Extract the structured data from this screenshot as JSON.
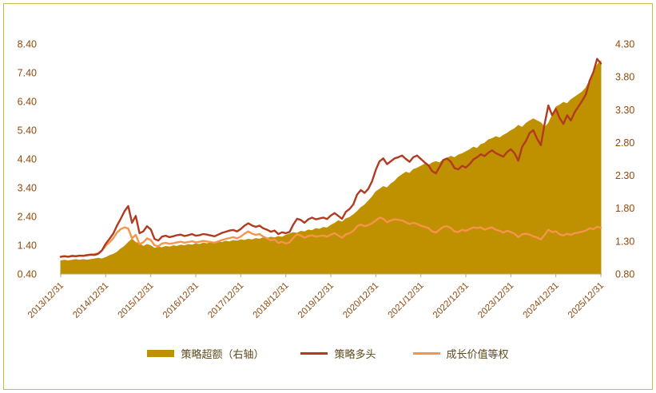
{
  "page": {
    "background": "#FFFFFF",
    "frame_color": "#C9B84D"
  },
  "chart_data": {
    "type": "combo (area + line)",
    "title": "",
    "legend_position": "bottom",
    "grid": false,
    "x_tick_labels": [
      "2013/12/31",
      "2014/12/31",
      "2015/12/31",
      "2016/12/31",
      "2017/12/31",
      "2018/12/31",
      "2019/12/31",
      "2020/12/31",
      "2021/12/31",
      "2022/12/31",
      "2023/12/31",
      "2024/12/31",
      "2025/12/31"
    ],
    "x_resolution": "monthly, 145 points from 2013/12/31 to 2025/12/31",
    "left_axis": {
      "min": 0.4,
      "max": 8.4,
      "ticks": [
        "0.40",
        "1.40",
        "2.40",
        "3.40",
        "4.40",
        "5.40",
        "6.40",
        "7.40",
        "8.40"
      ]
    },
    "right_axis": {
      "min": 0.8,
      "max": 4.3,
      "ticks": [
        "0.80",
        "1.30",
        "1.80",
        "2.30",
        "2.80",
        "3.30",
        "3.80",
        "4.30"
      ]
    },
    "series": [
      {
        "id": "strategy-excess",
        "name": "策略超额（右轴）",
        "type": "area",
        "axis": "right",
        "color": "#BF9000",
        "values": [
          1.0,
          1.01,
          1.0,
          1.01,
          1.02,
          1.01,
          1.02,
          1.01,
          1.02,
          1.03,
          1.04,
          1.03,
          1.05,
          1.08,
          1.1,
          1.13,
          1.18,
          1.22,
          1.28,
          1.33,
          1.28,
          1.26,
          1.22,
          1.25,
          1.23,
          1.19,
          1.21,
          1.2,
          1.22,
          1.21,
          1.23,
          1.22,
          1.24,
          1.23,
          1.25,
          1.24,
          1.26,
          1.25,
          1.27,
          1.26,
          1.28,
          1.27,
          1.29,
          1.28,
          1.3,
          1.29,
          1.31,
          1.3,
          1.32,
          1.31,
          1.33,
          1.32,
          1.34,
          1.33,
          1.35,
          1.34,
          1.36,
          1.35,
          1.37,
          1.36,
          1.39,
          1.41,
          1.43,
          1.42,
          1.45,
          1.44,
          1.47,
          1.46,
          1.49,
          1.48,
          1.51,
          1.5,
          1.54,
          1.57,
          1.61,
          1.59,
          1.64,
          1.66,
          1.7,
          1.75,
          1.81,
          1.85,
          1.91,
          1.97,
          2.05,
          2.09,
          2.13,
          2.11,
          2.17,
          2.21,
          2.27,
          2.31,
          2.35,
          2.33,
          2.39,
          2.41,
          2.44,
          2.47,
          2.45,
          2.49,
          2.51,
          2.49,
          2.54,
          2.56,
          2.59,
          2.57,
          2.61,
          2.63,
          2.66,
          2.69,
          2.73,
          2.71,
          2.77,
          2.79,
          2.84,
          2.86,
          2.89,
          2.87,
          2.91,
          2.94,
          2.98,
          3.01,
          3.06,
          3.03,
          3.09,
          3.13,
          3.16,
          3.13,
          3.1,
          3.03,
          3.09,
          3.21,
          3.34,
          3.37,
          3.41,
          3.39,
          3.45,
          3.49,
          3.53,
          3.57,
          3.63,
          3.74,
          3.86,
          3.98,
          4.04
        ]
      },
      {
        "id": "strategy-long",
        "name": "策略多头",
        "type": "line",
        "axis": "left",
        "color": "#B13A20",
        "values": [
          1.0,
          1.02,
          1.0,
          1.03,
          1.02,
          1.04,
          1.03,
          1.05,
          1.07,
          1.06,
          1.1,
          1.22,
          1.45,
          1.62,
          1.8,
          2.08,
          2.32,
          2.58,
          2.76,
          2.18,
          2.42,
          1.82,
          1.88,
          2.06,
          1.95,
          1.62,
          1.56,
          1.7,
          1.73,
          1.68,
          1.71,
          1.75,
          1.77,
          1.72,
          1.75,
          1.79,
          1.73,
          1.75,
          1.79,
          1.77,
          1.74,
          1.71,
          1.77,
          1.83,
          1.87,
          1.91,
          1.93,
          1.88,
          1.96,
          2.08,
          2.16,
          2.09,
          2.04,
          2.08,
          1.99,
          1.94,
          1.87,
          1.91,
          1.79,
          1.85,
          1.82,
          1.86,
          2.12,
          2.32,
          2.28,
          2.18,
          2.3,
          2.36,
          2.3,
          2.33,
          2.36,
          2.31,
          2.43,
          2.52,
          2.42,
          2.32,
          2.56,
          2.66,
          2.82,
          3.16,
          3.32,
          3.22,
          3.36,
          3.62,
          4.02,
          4.32,
          4.42,
          4.22,
          4.32,
          4.42,
          4.46,
          4.52,
          4.4,
          4.3,
          4.46,
          4.52,
          4.4,
          4.28,
          4.18,
          3.98,
          3.9,
          4.12,
          4.36,
          4.42,
          4.3,
          4.08,
          4.04,
          4.16,
          4.1,
          4.22,
          4.38,
          4.46,
          4.56,
          4.5,
          4.62,
          4.7,
          4.6,
          4.54,
          4.48,
          4.64,
          4.74,
          4.6,
          4.34,
          4.82,
          5.02,
          5.3,
          5.4,
          5.1,
          4.88,
          5.62,
          6.26,
          5.92,
          6.14,
          5.82,
          5.62,
          5.92,
          5.74,
          6.02,
          6.22,
          6.42,
          6.64,
          7.12,
          7.42,
          7.88,
          7.72
        ]
      },
      {
        "id": "growth-value-equal-weight",
        "name": "成长价值等权",
        "type": "line",
        "axis": "left",
        "color": "#F6944C",
        "values": [
          1.0,
          1.01,
          1.0,
          1.02,
          1.01,
          1.03,
          1.04,
          1.06,
          1.08,
          1.09,
          1.12,
          1.22,
          1.38,
          1.5,
          1.64,
          1.84,
          1.96,
          2.02,
          1.98,
          1.64,
          1.76,
          1.44,
          1.5,
          1.64,
          1.58,
          1.4,
          1.36,
          1.46,
          1.48,
          1.45,
          1.47,
          1.5,
          1.52,
          1.49,
          1.51,
          1.54,
          1.5,
          1.52,
          1.55,
          1.53,
          1.51,
          1.49,
          1.53,
          1.58,
          1.62,
          1.65,
          1.68,
          1.64,
          1.7,
          1.8,
          1.88,
          1.8,
          1.76,
          1.79,
          1.7,
          1.64,
          1.57,
          1.6,
          1.48,
          1.52,
          1.46,
          1.5,
          1.66,
          1.78,
          1.74,
          1.66,
          1.72,
          1.75,
          1.7,
          1.72,
          1.74,
          1.7,
          1.77,
          1.82,
          1.74,
          1.66,
          1.78,
          1.82,
          1.9,
          2.06,
          2.12,
          2.06,
          2.1,
          2.16,
          2.26,
          2.36,
          2.32,
          2.2,
          2.26,
          2.3,
          2.28,
          2.26,
          2.2,
          2.14,
          2.18,
          2.14,
          2.08,
          2.04,
          2.0,
          1.88,
          1.84,
          1.94,
          2.04,
          2.06,
          2.0,
          1.88,
          1.86,
          1.94,
          1.9,
          1.96,
          2.02,
          2.0,
          2.02,
          1.94,
          1.99,
          2.02,
          1.94,
          1.9,
          1.84,
          1.9,
          1.86,
          1.8,
          1.68,
          1.78,
          1.8,
          1.77,
          1.71,
          1.67,
          1.6,
          1.76,
          1.94,
          1.86,
          1.88,
          1.78,
          1.74,
          1.8,
          1.76,
          1.82,
          1.84,
          1.87,
          1.91,
          1.99,
          1.96,
          2.04,
          2.01
        ]
      }
    ]
  }
}
